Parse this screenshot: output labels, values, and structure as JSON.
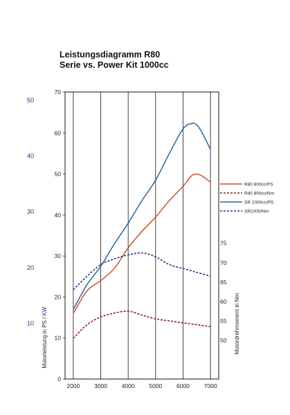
{
  "chart_data": {
    "type": "line",
    "title": "Leistungsdiagramm R80",
    "subtitle": "Serie vs. Power Kit 1000cc",
    "x": [
      2000,
      2500,
      3000,
      3500,
      4000,
      4500,
      5000,
      5500,
      6000,
      6500,
      7000
    ],
    "xticks": [
      2000,
      3000,
      4000,
      5000,
      6000,
      7000
    ],
    "xlim": [
      1700,
      7300
    ],
    "ylim_ps": [
      0,
      70
    ],
    "yticks_ps": [
      0,
      10,
      20,
      30,
      40,
      50,
      60,
      70
    ],
    "yticks_kw": [
      10,
      20,
      30,
      40,
      50
    ],
    "yticks_nm": [
      50,
      55,
      60,
      65,
      70,
      75
    ],
    "ylim_nm": [
      40,
      114
    ],
    "ylabel_left": "Motorleistung in PS",
    "ylabel_left_unit": "KW",
    "ylabel_right": "Motordrehmoment in Nm",
    "grid": true,
    "legend_position": "right",
    "series": [
      {
        "name": "R80 800cc/PS",
        "axis": "ps",
        "style": "solid",
        "color": "#c8502a",
        "x": [
          2000,
          2500,
          3000,
          3500,
          4000,
          4500,
          5000,
          5500,
          6000,
          6300,
          6500,
          6700,
          7000
        ],
        "values": [
          16,
          21.5,
          24,
          27,
          32,
          36,
          39.5,
          43.5,
          47,
          49.5,
          50,
          49.5,
          48
        ]
      },
      {
        "name": "R80 800cc/Nm",
        "axis": "nm",
        "style": "dashed",
        "color": "#8b1a1a",
        "x": [
          2000,
          2500,
          3000,
          3500,
          4000,
          4500,
          5000,
          5500,
          6000,
          6500,
          7000
        ],
        "values": [
          50.5,
          54,
          56,
          57,
          57.5,
          56.5,
          55.5,
          55,
          54.5,
          54,
          53.5
        ]
      },
      {
        "name": "SR 1000cc/PS",
        "axis": "ps",
        "style": "solid",
        "color": "#2a6496",
        "x": [
          2000,
          2500,
          3000,
          3500,
          4000,
          4500,
          5000,
          5500,
          6000,
          6300,
          6500,
          6700,
          7000
        ],
        "values": [
          17,
          23,
          27.5,
          33,
          38,
          43.5,
          48.5,
          55,
          61,
          62.3,
          62,
          60,
          56
        ]
      },
      {
        "name": "SR1000/Nm",
        "axis": "nm",
        "style": "dashed",
        "color": "#1f3a80",
        "x": [
          2000,
          2500,
          3000,
          3500,
          4000,
          4500,
          5000,
          5500,
          6000,
          6500,
          7000
        ],
        "values": [
          63,
          66.5,
          69.5,
          71,
          72,
          72.5,
          71.5,
          69.5,
          68.5,
          67.5,
          66.5
        ]
      }
    ]
  }
}
